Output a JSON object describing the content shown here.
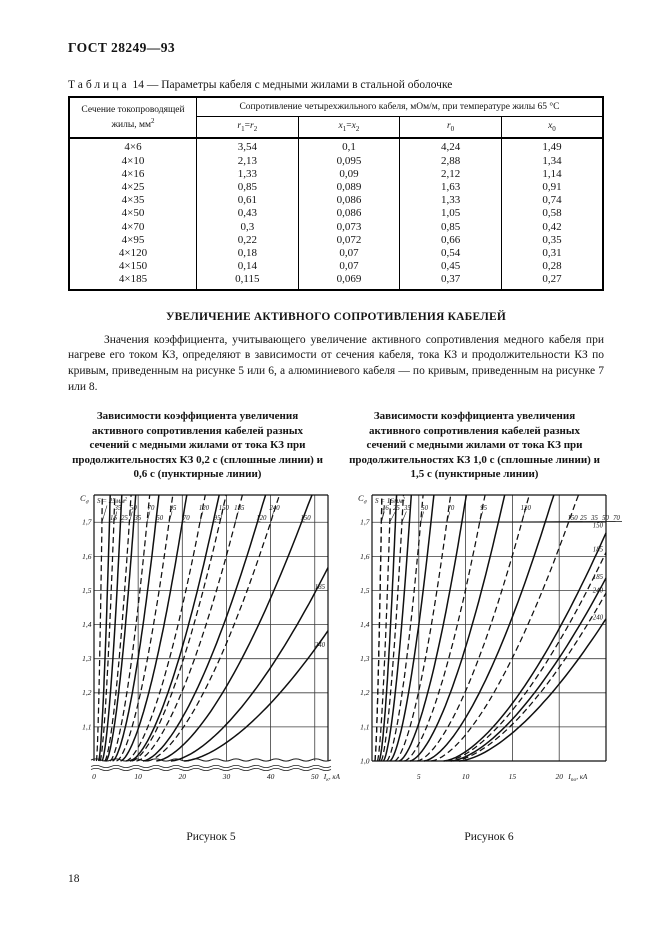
{
  "header": {
    "standard": "ГОСТ 28249—93"
  },
  "footer": {
    "page_number": "18"
  },
  "table": {
    "caption_word": "Таблица",
    "caption_rest": "14 — Параметры кабеля с медными жилами в стальной оболочке",
    "col1_header": "Сечение токопроводящей жилы, мм",
    "col1_sup": "2",
    "group_header": "Сопротивление четырехжильного кабеля, мОм/м, при температуре жилы 65 °С",
    "sub_headers": [
      {
        "parts": [
          {
            "t": "r",
            "i": true,
            "sub": "1"
          },
          {
            "t": "="
          },
          {
            "t": "r",
            "i": true,
            "sub": "2"
          }
        ]
      },
      {
        "parts": [
          {
            "t": "x",
            "i": true,
            "sub": "1"
          },
          {
            "t": "="
          },
          {
            "t": "x",
            "i": true,
            "sub": "2"
          }
        ]
      },
      {
        "parts": [
          {
            "t": "r",
            "i": true,
            "sub": "0"
          }
        ]
      },
      {
        "parts": [
          {
            "t": "x",
            "i": true,
            "sub": "0"
          }
        ]
      }
    ],
    "rows": [
      [
        "4×6",
        "3,54",
        "0,1",
        "4,24",
        "1,49"
      ],
      [
        "4×10",
        "2,13",
        "0,095",
        "2,88",
        "1,34"
      ],
      [
        "4×16",
        "1,33",
        "0,09",
        "2,12",
        "1,14"
      ],
      [
        "4×25",
        "0,85",
        "0,089",
        "1,63",
        "0,91"
      ],
      [
        "4×35",
        "0,61",
        "0,086",
        "1,33",
        "0,74"
      ],
      [
        "4×50",
        "0,43",
        "0,086",
        "1,05",
        "0,58"
      ],
      [
        "4×70",
        "0,3",
        "0,073",
        "0,85",
        "0,42"
      ],
      [
        "4×95",
        "0,22",
        "0,072",
        "0,66",
        "0,35"
      ],
      [
        "4×120",
        "0,18",
        "0,07",
        "0,54",
        "0,31"
      ],
      [
        "4×150",
        "0,14",
        "0,07",
        "0,45",
        "0,28"
      ],
      [
        "4×185",
        "0,115",
        "0,069",
        "0,37",
        "0,27"
      ]
    ]
  },
  "section": {
    "heading": "УВЕЛИЧЕНИЕ АКТИВНОГО СОПРОТИВЛЕНИЯ КАБЕЛЕЙ",
    "paragraph": "Значения коэффициента, учитывающего увеличение активного сопротивления медного кабеля при нагреве его током КЗ, определяют в зависимости от сечения кабеля, тока КЗ и продолжительности КЗ по кривым, приведенным на рисунке 5 или 6, а алюминиевого кабеля — по кривым, приведенным на рисунке 7 или 8."
  },
  "figures": [
    {
      "caption": "Зависимости коэффициента увеличения активного сопротивления кабелей разных сечений с медными жилами от тока КЗ при продолжительностях КЗ 0,2 с (сплошные линии) и 0,6 с (пунктирные линии)",
      "label": "Рисунок 5"
    },
    {
      "caption": "Зависимости коэффициента увеличения активного сопротивления кабелей разных сечений с медными жилами от тока КЗ при продолжительностях КЗ 1,0 с (сплошные линии) и 1,5 с (пунктирные линии)",
      "label": "Рисунок 6"
    }
  ],
  "chart_data": [
    {
      "type": "line",
      "figure": "Рисунок 5",
      "solid_series": "КЗ 0,2 с (сплошные линии)",
      "dashed_series": "КЗ 0,6 с (пунктирные линии)",
      "sections_unit": "мм²",
      "ylabel": {
        "base": "С",
        "sub": "ϑ"
      },
      "xlabel": {
        "base": "I",
        "sub": "к",
        "unit": ", кА"
      },
      "xlim": [
        0,
        53
      ],
      "ylim": [
        1.0,
        1.78
      ],
      "xticks": [
        {
          "value": 0,
          "label": "0"
        },
        {
          "value": 10,
          "label": "10"
        },
        {
          "value": 20,
          "label": "20"
        },
        {
          "value": 30,
          "label": "30"
        },
        {
          "value": 40,
          "label": "40"
        },
        {
          "value": 50,
          "label": "50"
        }
      ],
      "yticks": [
        {
          "value": 1.1,
          "label": "1,1"
        },
        {
          "value": 1.2,
          "label": "1,2"
        },
        {
          "value": 1.3,
          "label": "1,3"
        },
        {
          "value": 1.4,
          "label": "1,4"
        },
        {
          "value": 1.5,
          "label": "1,5"
        },
        {
          "value": 1.6,
          "label": "1,6"
        },
        {
          "value": 1.7,
          "label": "1,7"
        }
      ],
      "axis_break_bottom": true,
      "s_label": {
        "text": "S = 25мм",
        "sup": "2"
      },
      "curves": [
        {
          "section": "25",
          "style": "dashed",
          "x_at_c17": 1.8,
          "label": "s"
        },
        {
          "section": "35",
          "style": "dashed",
          "x_at_c17": 4.5,
          "label": "row1"
        },
        {
          "section": "50",
          "style": "dashed",
          "x_at_c17": 8,
          "label": "row1"
        },
        {
          "section": "70",
          "style": "dashed",
          "x_at_c17": 12,
          "label": "row1"
        },
        {
          "section": "95",
          "style": "dashed",
          "x_at_c17": 17,
          "label": "row1"
        },
        {
          "section": "120",
          "style": "dashed",
          "x_at_c17": 24,
          "label": "row1"
        },
        {
          "section": "150",
          "style": "dashed",
          "x_at_c17": 28.5,
          "label": "row1"
        },
        {
          "section": "185",
          "style": "dashed",
          "x_at_c17": 32,
          "label": "row1"
        },
        {
          "section": "240",
          "style": "dashed",
          "x_at_c17": 40,
          "label": "row1"
        },
        {
          "section": "16",
          "style": "solid",
          "x_at_c17": 3.5,
          "label": "row2"
        },
        {
          "section": "25",
          "style": "solid",
          "x_at_c17": 6,
          "label": "row2"
        },
        {
          "section": "35",
          "style": "solid",
          "x_at_c17": 9,
          "label": "row2"
        },
        {
          "section": "50",
          "style": "solid",
          "x_at_c17": 14,
          "label": "row2"
        },
        {
          "section": "70",
          "style": "solid",
          "x_at_c17": 20,
          "label": "row2"
        },
        {
          "section": "95",
          "style": "solid",
          "x_at_c17": 27,
          "label": "row2"
        },
        {
          "section": "120",
          "style": "solid",
          "x_at_c17": 37,
          "label": "row2"
        },
        {
          "section": "150",
          "style": "solid",
          "x_at_c17": 47,
          "label": "row2"
        },
        {
          "section": "185",
          "style": "solid",
          "x_at_c17": 58,
          "label": "right",
          "label_y": 1.5
        },
        {
          "section": "240",
          "style": "solid",
          "x_at_c17": 68,
          "label": "right",
          "label_y": 1.33
        }
      ]
    },
    {
      "type": "line",
      "figure": "Рисунок 6",
      "solid_series": "КЗ 1,0 с (сплошные линии)",
      "dashed_series": "КЗ 1,5 с (пунктирные линии)",
      "sections_unit": "мм²",
      "ylabel": {
        "base": "С",
        "sub": "ϑ"
      },
      "xlabel": {
        "base": "I",
        "sub": "по",
        "unit": ", кА"
      },
      "xlim": [
        0,
        25
      ],
      "ylim": [
        1.0,
        1.78
      ],
      "xticks": [
        {
          "value": 5,
          "label": "5"
        },
        {
          "value": 10,
          "label": "10"
        },
        {
          "value": 15,
          "label": "15"
        },
        {
          "value": 20,
          "label": "20"
        }
      ],
      "yticks": [
        {
          "value": 1.0,
          "label": "1,0"
        },
        {
          "value": 1.1,
          "label": "1,1"
        },
        {
          "value": 1.2,
          "label": "1,2"
        },
        {
          "value": 1.3,
          "label": "1,3"
        },
        {
          "value": 1.4,
          "label": "1,4"
        },
        {
          "value": 1.5,
          "label": "1,5"
        },
        {
          "value": 1.6,
          "label": "1,6"
        },
        {
          "value": 1.7,
          "label": "1,7"
        }
      ],
      "axis_break_bottom": false,
      "s_label": {
        "text": "S = 16мм",
        "sup": "2"
      },
      "curves": [
        {
          "section": "16",
          "style": "dashed",
          "x_at_c17": 1.0,
          "label": "s"
        },
        {
          "section": "16",
          "style": "dashed",
          "x_at_c17": 1.0,
          "label": "row1"
        },
        {
          "section": "25",
          "style": "dashed",
          "x_at_c17": 1.9,
          "label": "row1"
        },
        {
          "section": "35",
          "style": "dashed",
          "x_at_c17": 3.2,
          "label": "row1"
        },
        {
          "section": "50",
          "style": "dashed",
          "x_at_c17": 5.2,
          "label": "row1"
        },
        {
          "section": "70",
          "style": "dashed",
          "x_at_c17": 8.0,
          "label": "row1"
        },
        {
          "section": "95",
          "style": "dashed",
          "x_at_c17": 11.5,
          "label": "row1"
        },
        {
          "section": "120",
          "style": "dashed",
          "x_at_c17": 16,
          "label": "row1"
        },
        {
          "section": "150",
          "style": "dashed",
          "x_at_c17": 21,
          "label": "row2"
        },
        {
          "section": "185",
          "style": "dashed",
          "x_at_c17": 26.5,
          "label": "right",
          "label_y": 1.61
        },
        {
          "section": "240",
          "style": "dashed",
          "x_at_c17": 29,
          "label": "right",
          "label_y": 1.49
        },
        {
          "section": "25",
          "style": "solid",
          "x_at_c17": 2.5,
          "label": "row2"
        },
        {
          "section": "35",
          "style": "solid",
          "x_at_c17": 4.0,
          "label": "row2"
        },
        {
          "section": "50",
          "style": "solid",
          "x_at_c17": 6.3,
          "label": "row2"
        },
        {
          "section": "70",
          "style": "solid",
          "x_at_c17": 9.6,
          "label": "row2"
        },
        {
          "section": "95",
          "style": "solid",
          "x_at_c17": 13.5,
          "label": "row2"
        },
        {
          "section": "120",
          "style": "solid",
          "x_at_c17": 18.5,
          "label": "row2"
        },
        {
          "section": "150",
          "style": "solid",
          "x_at_c17": 25.5,
          "label": "right",
          "label_y": 1.68
        },
        {
          "section": "185",
          "style": "solid",
          "x_at_c17": 28,
          "label": "right",
          "label_y": 1.53
        },
        {
          "section": "240",
          "style": "solid",
          "x_at_c17": 31,
          "label": "right",
          "label_y": 1.41
        }
      ]
    }
  ]
}
